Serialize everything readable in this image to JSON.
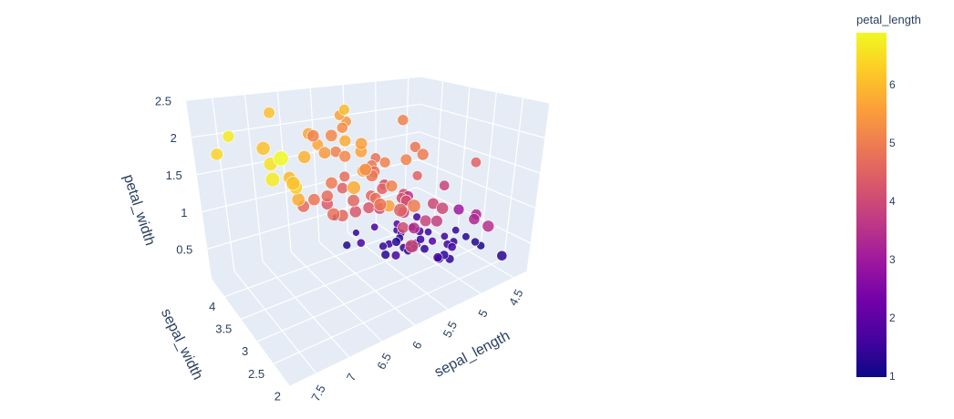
{
  "chart_data": {
    "type": "scatter3d",
    "axes": {
      "x": {
        "title": "sepal_length",
        "ticks": [
          "4.5",
          "5",
          "5.5",
          "6",
          "6.5",
          "7",
          "7.5"
        ],
        "range": [
          4.3,
          7.9
        ]
      },
      "y": {
        "title": "sepal_width",
        "ticks": [
          "2",
          "2.5",
          "3",
          "3.5",
          "4"
        ],
        "range": [
          2.0,
          4.4
        ]
      },
      "z": {
        "title": "petal_width",
        "ticks": [
          "0.5",
          "1",
          "1.5",
          "2",
          "2.5"
        ],
        "range": [
          0.1,
          2.5
        ]
      }
    },
    "color": {
      "title": "petal_length",
      "ticks": [
        "1",
        "2",
        "3",
        "4",
        "5",
        "6"
      ],
      "range": [
        1.0,
        6.9
      ],
      "colorscale": [
        "#0d0887",
        "#46039f",
        "#7201a8",
        "#9c179e",
        "#bd3786",
        "#d8576b",
        "#ed7953",
        "#fb9f3a",
        "#fdca26",
        "#f0f921"
      ]
    },
    "background": {
      "scene": "#e5ecf6",
      "grid": "#ffffff"
    },
    "series": [
      {
        "points": [
          [
            4.5,
            3.3,
            0.3,
            1.4
          ],
          [
            4.7,
            3.1,
            0.2,
            1.6
          ],
          [
            4.6,
            3.4,
            0.2,
            1.5
          ],
          [
            4.8,
            3.5,
            0.3,
            1.5
          ],
          [
            5.0,
            3.3,
            0.2,
            1.4
          ],
          [
            5.0,
            3.5,
            0.2,
            1.5
          ],
          [
            4.9,
            3.0,
            0.2,
            1.4
          ],
          [
            5.2,
            3.6,
            0.3,
            1.4
          ],
          [
            5.0,
            3.6,
            0.4,
            1.6
          ],
          [
            5.4,
            3.9,
            0.4,
            1.7
          ],
          [
            5.1,
            3.5,
            0.2,
            1.4
          ],
          [
            5.4,
            3.7,
            0.2,
            1.5
          ],
          [
            4.8,
            3.0,
            0.1,
            1.4
          ],
          [
            4.3,
            3.0,
            0.1,
            1.1
          ],
          [
            5.8,
            4.0,
            0.2,
            1.2
          ],
          [
            5.7,
            4.4,
            0.4,
            1.5
          ],
          [
            5.4,
            3.4,
            0.4,
            1.3
          ],
          [
            5.1,
            3.8,
            0.3,
            1.5
          ],
          [
            5.1,
            3.7,
            0.3,
            1.5
          ],
          [
            5.4,
            3.4,
            0.2,
            1.7
          ],
          [
            5.1,
            3.3,
            0.5,
            1.7
          ],
          [
            4.8,
            3.4,
            0.2,
            1.9
          ],
          [
            5.0,
            3.0,
            0.2,
            1.6
          ],
          [
            5.2,
            3.5,
            0.2,
            1.5
          ],
          [
            5.2,
            3.4,
            0.2,
            1.4
          ],
          [
            4.7,
            3.2,
            0.2,
            1.6
          ],
          [
            5.5,
            4.2,
            0.2,
            1.4
          ],
          [
            4.9,
            3.1,
            0.1,
            1.5
          ],
          [
            5.5,
            3.5,
            0.2,
            1.3
          ],
          [
            4.4,
            3.0,
            0.2,
            1.3
          ],
          [
            5.1,
            3.4,
            0.2,
            1.5
          ],
          [
            4.5,
            2.3,
            0.3,
            1.3
          ],
          [
            4.4,
            3.2,
            0.2,
            1.3
          ],
          [
            5.0,
            3.5,
            0.6,
            1.6
          ],
          [
            5.1,
            3.8,
            0.4,
            1.9
          ],
          [
            4.6,
            3.2,
            0.2,
            1.4
          ],
          [
            5.3,
            3.7,
            0.2,
            1.5
          ],
          [
            5.0,
            3.4,
            0.3,
            1.6
          ],
          [
            5.7,
            3.8,
            0.3,
            1.7
          ],
          [
            4.9,
            3.6,
            0.1,
            1.4
          ]
        ]
      },
      {
        "points": [
          [
            7.0,
            3.2,
            1.4,
            4.7
          ],
          [
            6.4,
            3.2,
            1.5,
            4.5
          ],
          [
            6.9,
            3.1,
            1.5,
            4.9
          ],
          [
            5.5,
            2.3,
            1.3,
            4.0
          ],
          [
            6.5,
            2.8,
            1.5,
            4.6
          ],
          [
            5.7,
            2.8,
            1.3,
            4.5
          ],
          [
            6.3,
            3.3,
            1.6,
            4.7
          ],
          [
            4.9,
            2.4,
            1.0,
            3.3
          ],
          [
            6.6,
            2.9,
            1.3,
            4.6
          ],
          [
            5.2,
            2.7,
            1.4,
            3.9
          ],
          [
            5.0,
            2.0,
            1.0,
            3.5
          ],
          [
            5.9,
            3.0,
            1.5,
            4.2
          ],
          [
            6.0,
            2.2,
            1.0,
            4.0
          ],
          [
            6.1,
            2.9,
            1.4,
            4.7
          ],
          [
            5.6,
            2.9,
            1.3,
            3.6
          ],
          [
            6.7,
            3.1,
            1.4,
            4.4
          ],
          [
            5.8,
            2.7,
            1.0,
            4.1
          ],
          [
            6.2,
            2.2,
            1.5,
            4.5
          ],
          [
            5.6,
            2.5,
            1.1,
            3.9
          ],
          [
            5.9,
            3.2,
            1.8,
            4.8
          ],
          [
            6.1,
            2.8,
            1.3,
            4.0
          ],
          [
            6.3,
            2.5,
            1.5,
            4.9
          ],
          [
            6.4,
            2.9,
            1.3,
            4.3
          ],
          [
            6.8,
            2.8,
            1.4,
            4.8
          ],
          [
            6.7,
            3.0,
            1.7,
            5.0
          ],
          [
            6.0,
            2.9,
            1.5,
            4.5
          ],
          [
            5.7,
            2.6,
            1.0,
            3.5
          ],
          [
            5.5,
            2.4,
            1.1,
            3.8
          ],
          [
            5.8,
            2.7,
            1.2,
            3.9
          ],
          [
            6.0,
            2.7,
            1.6,
            5.1
          ],
          [
            5.4,
            3.0,
            1.5,
            4.5
          ],
          [
            6.7,
            3.1,
            1.5,
            4.7
          ],
          [
            5.6,
            3.0,
            1.3,
            4.1
          ],
          [
            5.5,
            2.5,
            1.3,
            4.0
          ],
          [
            6.1,
            3.0,
            1.4,
            4.6
          ],
          [
            5.0,
            2.3,
            1.0,
            3.3
          ],
          [
            5.7,
            2.9,
            1.3,
            4.2
          ],
          [
            6.2,
            2.9,
            1.3,
            4.3
          ],
          [
            5.1,
            2.5,
            1.1,
            3.0
          ],
          [
            5.7,
            2.8,
            1.3,
            4.1
          ]
        ]
      },
      {
        "points": [
          [
            6.3,
            3.3,
            2.5,
            6.0
          ],
          [
            5.8,
            2.7,
            1.9,
            5.1
          ],
          [
            7.1,
            3.0,
            2.1,
            5.9
          ],
          [
            6.3,
            2.9,
            1.8,
            5.6
          ],
          [
            6.5,
            3.0,
            2.2,
            5.8
          ],
          [
            7.6,
            3.0,
            2.1,
            6.6
          ],
          [
            4.9,
            2.5,
            1.7,
            4.5
          ],
          [
            7.3,
            2.9,
            1.8,
            6.3
          ],
          [
            6.7,
            2.5,
            1.8,
            5.8
          ],
          [
            7.2,
            3.6,
            2.5,
            6.1
          ],
          [
            6.5,
            3.2,
            2.0,
            5.1
          ],
          [
            6.4,
            2.7,
            1.9,
            5.3
          ],
          [
            6.8,
            3.0,
            2.1,
            5.5
          ],
          [
            5.7,
            2.5,
            2.0,
            5.0
          ],
          [
            5.8,
            2.8,
            2.4,
            5.1
          ],
          [
            6.4,
            3.2,
            2.3,
            5.3
          ],
          [
            7.7,
            3.8,
            2.2,
            6.7
          ],
          [
            7.7,
            2.6,
            2.3,
            6.9
          ],
          [
            6.0,
            2.2,
            1.5,
            5.0
          ],
          [
            6.9,
            3.2,
            2.3,
            5.7
          ],
          [
            5.6,
            2.8,
            2.0,
            4.9
          ],
          [
            7.7,
            2.8,
            2.0,
            6.7
          ],
          [
            6.3,
            2.7,
            1.8,
            4.9
          ],
          [
            6.7,
            3.3,
            2.1,
            5.7
          ],
          [
            7.2,
            3.2,
            1.8,
            6.0
          ],
          [
            6.2,
            2.8,
            1.8,
            4.8
          ],
          [
            6.1,
            3.0,
            1.8,
            4.9
          ],
          [
            6.4,
            2.8,
            2.1,
            5.6
          ],
          [
            7.2,
            3.0,
            1.6,
            5.8
          ],
          [
            7.4,
            2.8,
            1.9,
            6.1
          ],
          [
            7.9,
            3.8,
            2.0,
            6.4
          ],
          [
            6.4,
            2.8,
            2.2,
            5.6
          ],
          [
            6.1,
            2.6,
            1.4,
            5.6
          ],
          [
            7.7,
            3.0,
            2.3,
            6.1
          ],
          [
            6.3,
            3.4,
            2.4,
            5.6
          ],
          [
            6.9,
            3.1,
            2.3,
            5.1
          ],
          [
            6.7,
            3.0,
            2.3,
            5.2
          ],
          [
            6.5,
            3.0,
            2.0,
            5.2
          ],
          [
            6.2,
            3.4,
            2.3,
            5.4
          ],
          [
            5.9,
            3.0,
            1.8,
            5.1
          ]
        ]
      }
    ]
  }
}
